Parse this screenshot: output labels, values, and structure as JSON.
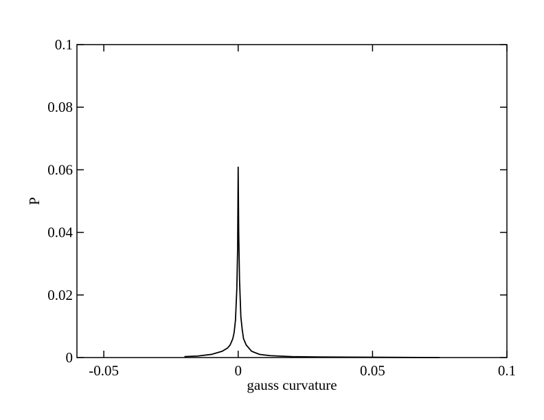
{
  "chart_data": {
    "type": "line",
    "x_label": "gauss curvature",
    "y_label": "P",
    "x": [
      -0.02,
      -0.015,
      -0.01,
      -0.006,
      -0.004,
      -0.003,
      -0.002,
      -0.0015,
      -0.001,
      -0.0005,
      -0.0002,
      0,
      0.0002,
      0.0005,
      0.001,
      0.0015,
      0.002,
      0.003,
      0.005,
      0.008,
      0.012,
      0.02,
      0.03,
      0.05,
      0.075
    ],
    "series": [
      {
        "color": "#000000",
        "values": [
          0.0003,
          0.0005,
          0.001,
          0.002,
          0.003,
          0.004,
          0.006,
          0.008,
          0.012,
          0.022,
          0.035,
          0.061,
          0.04,
          0.025,
          0.013,
          0.009,
          0.006,
          0.004,
          0.002,
          0.001,
          0.0006,
          0.0003,
          0.0002,
          0.0001,
          0
        ]
      }
    ],
    "xlim": [
      -0.06,
      0.1
    ],
    "ylim": [
      0,
      0.1
    ],
    "xticks": [
      -0.05,
      0,
      0.05,
      0.1
    ],
    "yticks": [
      0,
      0.02,
      0.04,
      0.06,
      0.08,
      0.1
    ]
  }
}
